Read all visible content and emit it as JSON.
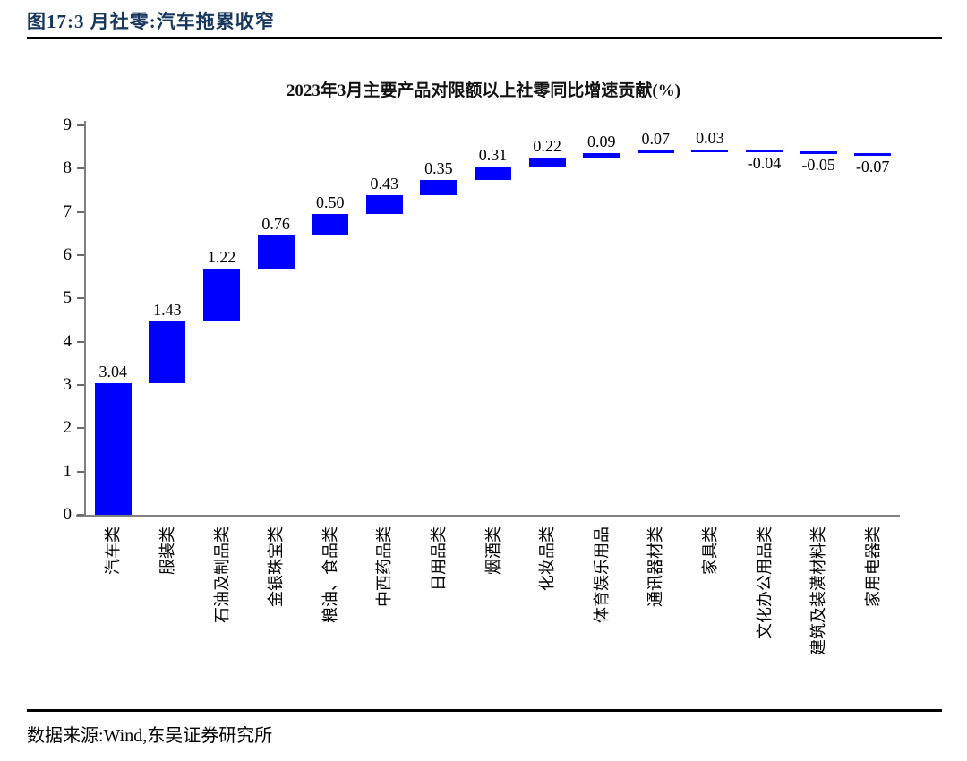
{
  "figure": {
    "caption": "图17:3 月社零:汽车拖累收窄"
  },
  "source": {
    "text": "数据来源:Wind,东吴证券研究所"
  },
  "chart_data": {
    "type": "bar",
    "subtype": "waterfall",
    "title": "2023年3月主要产品对限额以上社零同比增速贡献(%)",
    "categories": [
      "汽车类",
      "服装类",
      "石油及制品类",
      "金银珠宝类",
      "粮油、食品类",
      "中西药品类",
      "日用品类",
      "烟酒类",
      "化妆品类",
      "体育娱乐用品",
      "通讯器材类",
      "家具类",
      "文化办公用品类",
      "建筑及装潢材料类",
      "家用电器类"
    ],
    "values": [
      3.04,
      1.43,
      1.22,
      0.76,
      0.5,
      0.43,
      0.35,
      0.31,
      0.22,
      0.09,
      0.07,
      0.03,
      -0.04,
      -0.05,
      -0.07
    ],
    "value_labels": [
      "3.04",
      "1.43",
      "1.22",
      "0.76",
      "0.50",
      "0.43",
      "0.35",
      "0.31",
      "0.22",
      "0.09",
      "0.07",
      "0.03",
      "-0.04",
      "-0.05",
      "-0.07"
    ],
    "cumulative": true,
    "cumulative_total": 8.29,
    "y_ticks": [
      0,
      1,
      2,
      3,
      4,
      5,
      6,
      7,
      8,
      9
    ],
    "ylim": [
      0,
      9
    ],
    "xlabel": "",
    "ylabel": "",
    "grid": false,
    "legend": "none",
    "bar_color": "#0000FE",
    "axis_color": "#808080",
    "caption_color": "#17375E"
  }
}
